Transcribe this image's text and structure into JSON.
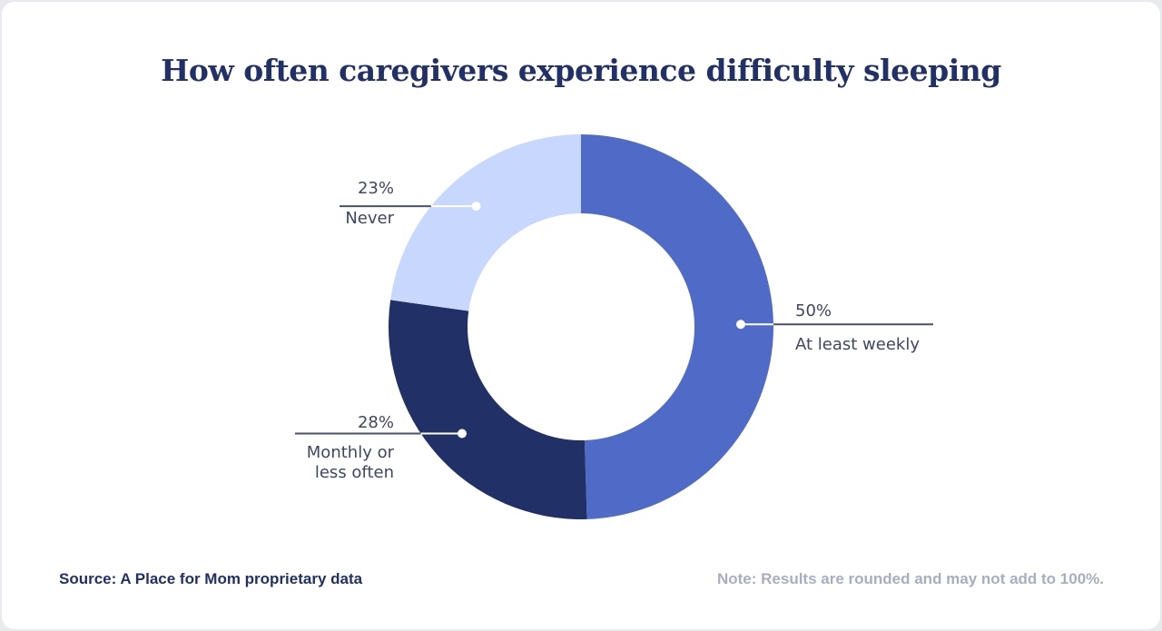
{
  "chart_data": {
    "type": "pie",
    "donut": true,
    "title": "How often caregivers experience difficulty sleeping",
    "slices": [
      {
        "label": "At least weekly",
        "value": 50,
        "value_label": "50%",
        "color": "#4f6bc7"
      },
      {
        "label": "Monthly or less often",
        "value": 28,
        "value_label": "28%",
        "color": "#213066"
      },
      {
        "label": "Never",
        "value": 23,
        "value_label": "23%",
        "color": "#c7d7fd"
      }
    ],
    "start": "top",
    "direction": "clockwise"
  },
  "footer": {
    "source": "Source: A Place for Mom proprietary data",
    "note": "Note: Results are rounded and may not add to 100%."
  }
}
